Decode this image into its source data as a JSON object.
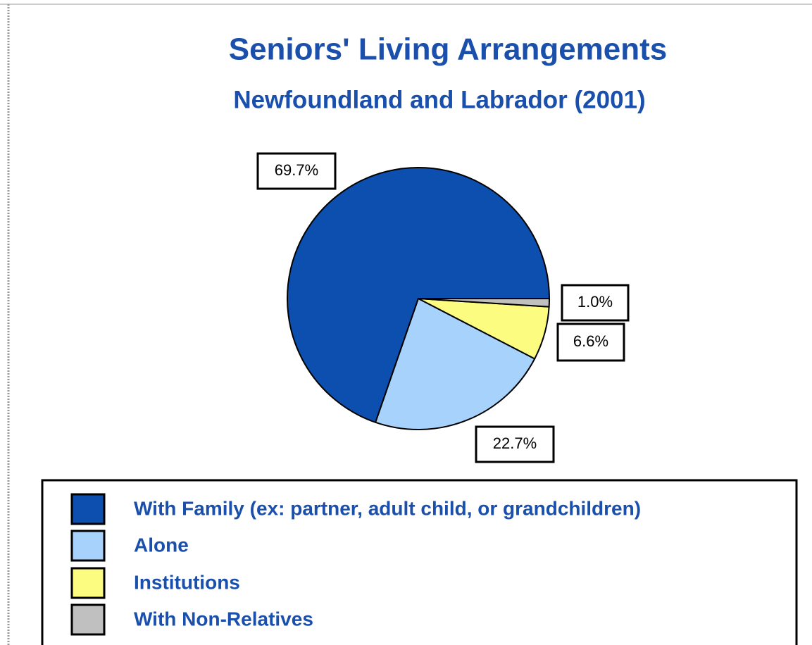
{
  "chart_data": {
    "type": "pie",
    "title": "Seniors' Living Arrangements",
    "subtitle": "Newfoundland and Labrador (2001)",
    "categories": [
      "With Family (ex: partner, adult child, or grandchildren)",
      "Alone",
      "Institutions",
      "With Non-Relatives"
    ],
    "values": [
      69.7,
      22.7,
      6.6,
      1.0
    ],
    "value_labels": [
      "69.7%",
      "22.7%",
      "6.6%",
      "1.0%"
    ],
    "colors": [
      "#0d4fae",
      "#a6d2fb",
      "#fcfc80",
      "#c0c0c0"
    ]
  }
}
